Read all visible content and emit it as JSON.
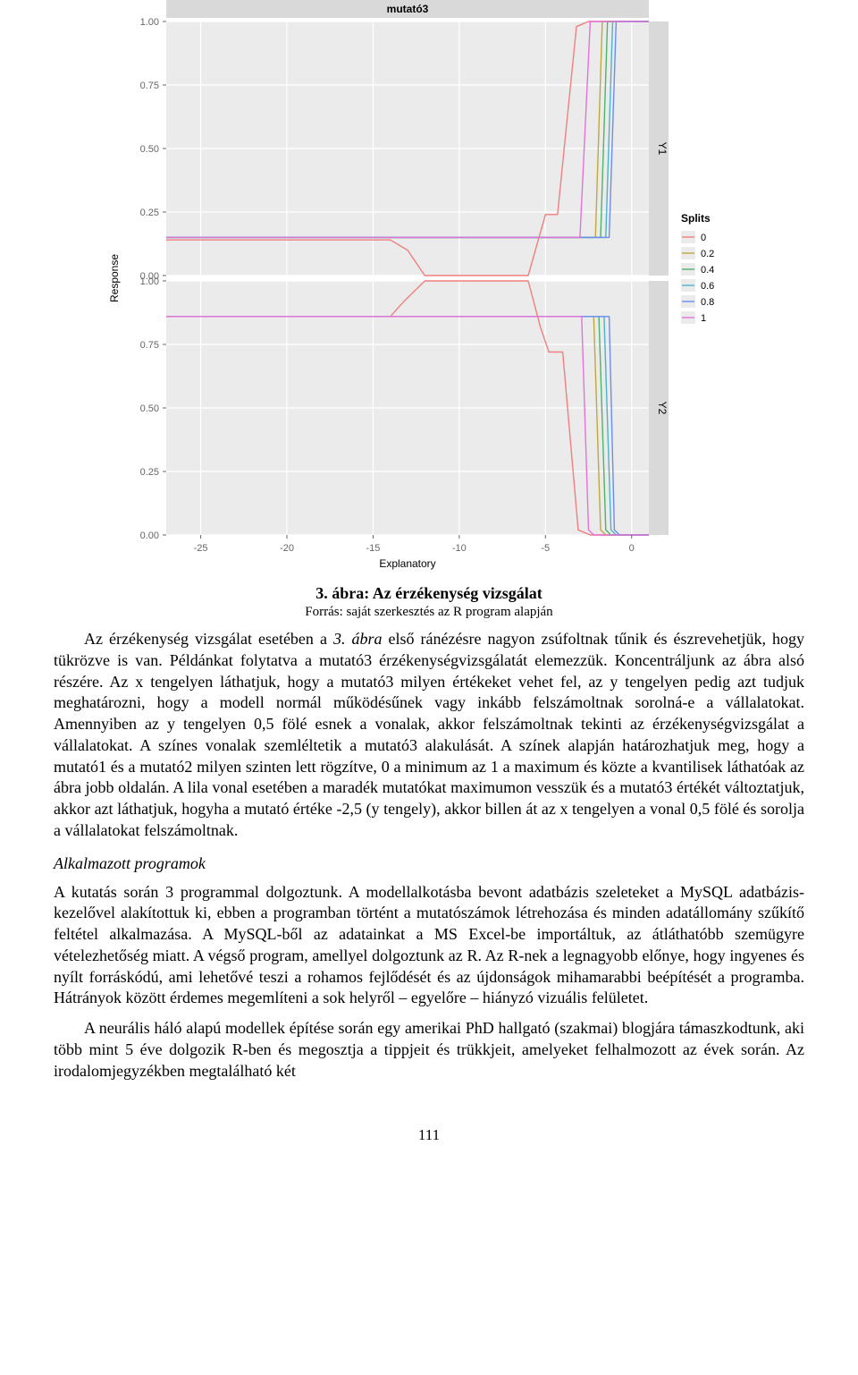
{
  "chart": {
    "facet_title": "mutató3",
    "axis_y_label": "Response",
    "axis_x_label": "Explanatory",
    "strip_y1": "Y1",
    "strip_y2": "Y2",
    "legend_title": "Splits",
    "legend_items": [
      {
        "label": "0",
        "color": "#f07f7f"
      },
      {
        "label": "0.2",
        "color": "#bfa83f"
      },
      {
        "label": "0.4",
        "color": "#4fb36a"
      },
      {
        "label": "0.6",
        "color": "#4fb3c7"
      },
      {
        "label": "0.8",
        "color": "#6b8df2"
      },
      {
        "label": "1",
        "color": "#e372d8"
      }
    ],
    "x_ticks": [
      "-25",
      "-20",
      "-15",
      "-10",
      "-5",
      "0"
    ],
    "y_ticks": [
      "0.00",
      "0.25",
      "0.50",
      "0.75",
      "1.00"
    ],
    "x_range": [
      -27,
      1
    ],
    "y_range": [
      0,
      1
    ],
    "panel_bg": "#ebebeb",
    "grid_color": "#ffffff",
    "strip_bg": "#d9d9d9",
    "tick_text_color": "#666666",
    "outer_bg": "#ffffff",
    "axis_label_fontsize": 12,
    "tick_fontsize": 11,
    "strip_fontsize": 12,
    "legend_title_fontsize": 12,
    "legend_label_fontsize": 11,
    "line_width": 1.4,
    "y1_series": [
      {
        "color": "#f07f7f",
        "pts": [
          [
            -27,
            0.14
          ],
          [
            -14,
            0.14
          ],
          [
            -13,
            0.1
          ],
          [
            -12,
            0.0
          ],
          [
            -6,
            0.0
          ],
          [
            -5,
            0.24
          ],
          [
            -4.3,
            0.24
          ],
          [
            -3.2,
            0.98
          ],
          [
            -2.5,
            1.0
          ],
          [
            1,
            1.0
          ]
        ]
      },
      {
        "color": "#bfa83f",
        "pts": [
          [
            -27,
            0.15
          ],
          [
            -2.1,
            0.15
          ],
          [
            -1.7,
            1.0
          ],
          [
            1,
            1.0
          ]
        ]
      },
      {
        "color": "#4fb36a",
        "pts": [
          [
            -27,
            0.15
          ],
          [
            -1.8,
            0.15
          ],
          [
            -1.4,
            1.0
          ],
          [
            1,
            1.0
          ]
        ]
      },
      {
        "color": "#4fb3c7",
        "pts": [
          [
            -27,
            0.15
          ],
          [
            -1.5,
            0.15
          ],
          [
            -1.1,
            1.0
          ],
          [
            1,
            1.0
          ]
        ]
      },
      {
        "color": "#6b8df2",
        "pts": [
          [
            -27,
            0.15
          ],
          [
            -1.3,
            0.15
          ],
          [
            -0.9,
            1.0
          ],
          [
            1,
            1.0
          ]
        ]
      },
      {
        "color": "#e372d8",
        "pts": [
          [
            -27,
            0.15
          ],
          [
            -3.0,
            0.15
          ],
          [
            -2.4,
            1.0
          ],
          [
            1,
            1.0
          ]
        ]
      }
    ],
    "y2_series": [
      {
        "color": "#f07f7f",
        "pts": [
          [
            -27,
            0.86
          ],
          [
            -14,
            0.86
          ],
          [
            -13.2,
            0.92
          ],
          [
            -12,
            1.0
          ],
          [
            -6,
            1.0
          ],
          [
            -5.3,
            0.82
          ],
          [
            -4.8,
            0.72
          ],
          [
            -4.0,
            0.72
          ],
          [
            -3.1,
            0.02
          ],
          [
            -2.4,
            0.0
          ],
          [
            1,
            0.0
          ]
        ]
      },
      {
        "color": "#bfa83f",
        "pts": [
          [
            -27,
            0.86
          ],
          [
            -2.2,
            0.86
          ],
          [
            -1.8,
            0.02
          ],
          [
            -1.5,
            0.0
          ],
          [
            1,
            0.0
          ]
        ]
      },
      {
        "color": "#4fb36a",
        "pts": [
          [
            -27,
            0.86
          ],
          [
            -1.9,
            0.86
          ],
          [
            -1.5,
            0.02
          ],
          [
            -1.2,
            0.0
          ],
          [
            1,
            0.0
          ]
        ]
      },
      {
        "color": "#4fb3c7",
        "pts": [
          [
            -27,
            0.86
          ],
          [
            -1.6,
            0.86
          ],
          [
            -1.2,
            0.02
          ],
          [
            -0.9,
            0.0
          ],
          [
            1,
            0.0
          ]
        ]
      },
      {
        "color": "#6b8df2",
        "pts": [
          [
            -27,
            0.86
          ],
          [
            -1.3,
            0.86
          ],
          [
            -1.0,
            0.02
          ],
          [
            -0.7,
            0.0
          ],
          [
            1,
            0.0
          ]
        ]
      },
      {
        "color": "#e372d8",
        "pts": [
          [
            -27,
            0.86
          ],
          [
            -2.9,
            0.86
          ],
          [
            -2.5,
            0.02
          ],
          [
            -2.2,
            0.0
          ],
          [
            1,
            0.0
          ]
        ]
      }
    ]
  },
  "caption": {
    "title": "3. ábra: Az érzékenység vizsgálat",
    "source": "Forrás: saját szerkesztés az R program alapján"
  },
  "para_intro_lead": "Az érzékenység vizsgálat esetében a ",
  "para_intro_ital": "3. ábra",
  "para_intro_rest": " első ránézésre nagyon zsúfoltnak tűnik és észrevehetjük, hogy tükrözve is van. Példánkat folytatva a mutató3 érzékenységvizsgálatát elemezzük. Koncentráljunk az ábra alsó részére. Az x tengelyen láthatjuk, hogy a mutató3 milyen értékeket vehet fel, az y tengelyen pedig azt tudjuk meghatározni, hogy a modell normál működésűnek vagy inkább felszámoltnak sorolná-e a vállalatokat. Amennyiben az y tengelyen 0,5 fölé esnek a vonalak, akkor felszámoltnak tekinti az érzékenységvizsgálat a vállalatokat. A színes vonalak szemléltetik a mutató3 alakulását. A színek alapján határozhatjuk meg, hogy a mutató1 és a mutató2 milyen szinten lett rögzítve, 0 a minimum az 1 a maximum és közte a kvantilisek láthatóak az ábra jobb oldalán. A lila vonal esetében a maradék mutatókat maximumon vesszük és a mutató3 értékét változtatjuk, akkor azt láthatjuk, hogyha a mutató értéke -2,5 (y tengely), akkor billen át az x tengelyen a vonal 0,5 fölé és sorolja a vállalatokat felszámoltnak.",
  "subhead": "Alkalmazott programok",
  "para2": "A kutatás során 3 programmal dolgoztunk. A modellalkotásba bevont adatbázis szeleteket a MySQL adatbázis-kezelővel alakítottuk ki, ebben a programban történt a mutatószámok létrehozása és minden adatállomány szűkítő feltétel alkalmazása. A MySQL-ből az adatainkat a MS Excel-be importáltuk, az átláthatóbb szemügyre vételezhetőség miatt. A végső program, amellyel dolgoztunk az R. Az R-nek a legnagyobb előnye, hogy ingyenes és nyílt forráskódú, ami lehetővé teszi a rohamos fejlődését és az újdonságok mihamarabbi beépítését a programba. Hátrányok között érdemes megemlíteni a sok helyről – egyelőre – hiányzó vizuális felületet.",
  "para3": "A neurális háló alapú modellek építése során egy amerikai PhD hallgató (szakmai) blogjára támaszkodtunk, aki több mint 5 éve dolgozik R-ben és megosztja a tippjeit és trükkjeit, amelyeket felhalmozott az évek során. Az irodalomjegyzékben megtalálható két",
  "pagenum": "111"
}
